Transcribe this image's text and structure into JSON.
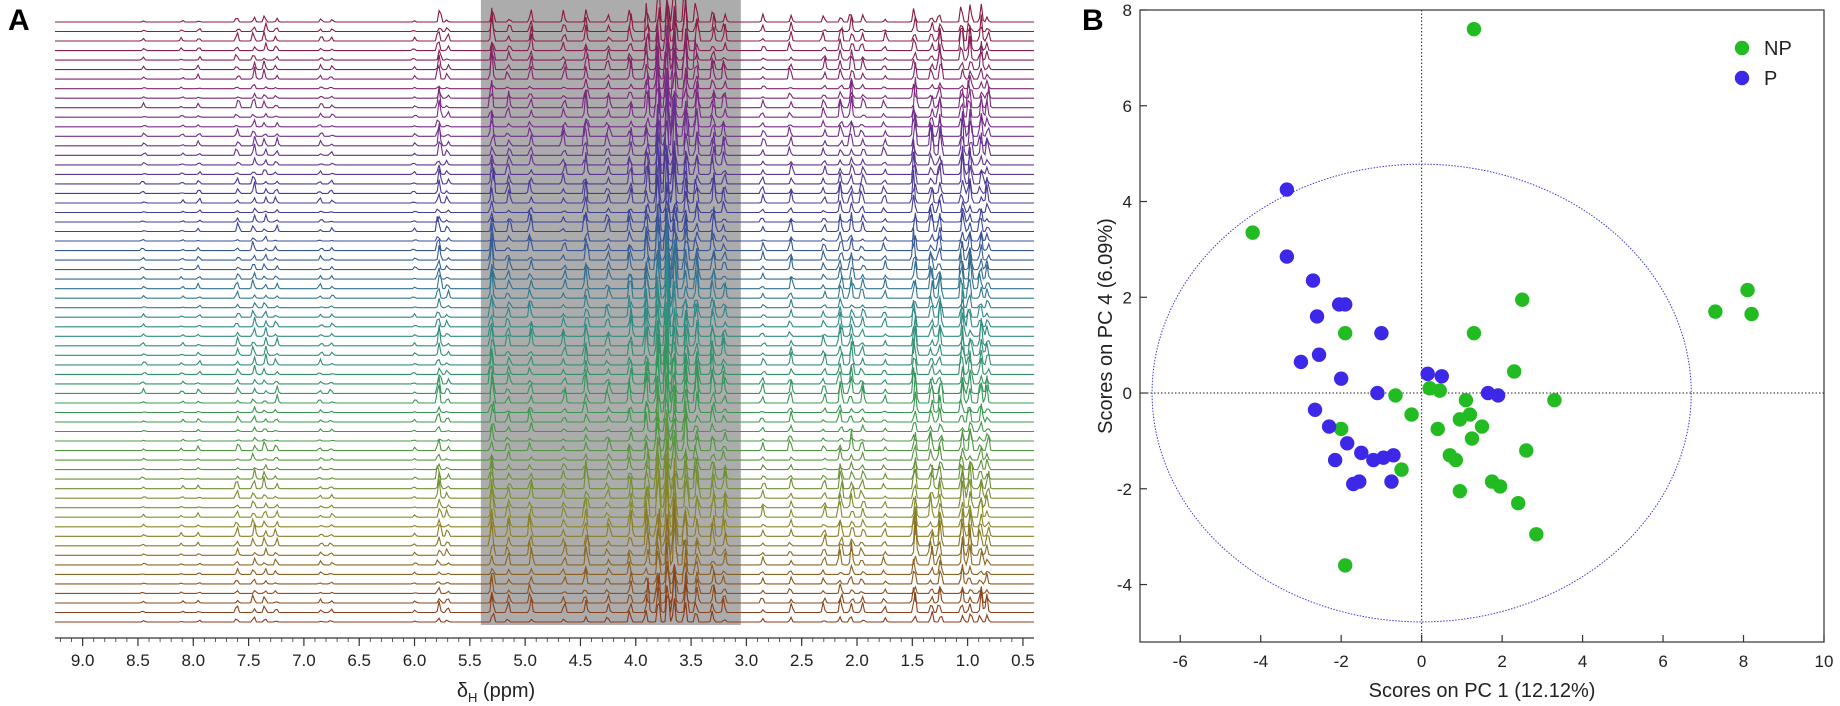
{
  "chart_data": [
    {
      "panel": "A",
      "type": "line",
      "title": "",
      "xlabel": "ppm",
      "xlabel_symbol": "δ",
      "xlabel_subscript": "H",
      "xlim": [
        9.25,
        0.4
      ],
      "x_ticks": [
        9.0,
        8.5,
        8.0,
        7.5,
        7.0,
        6.5,
        6.0,
        5.5,
        5.0,
        4.5,
        4.0,
        3.5,
        3.0,
        2.5,
        2.0,
        1.5,
        1.0,
        0.5
      ],
      "x_tick_labels": [
        "9.0",
        "8.5",
        "8.0",
        "7.5",
        "7.0",
        "6.5",
        "6.0",
        "5.5",
        "5.0",
        "4.5",
        "4.0",
        "3.5",
        "3.0",
        "2.5",
        "2.0",
        "1.5",
        "1.0",
        "0.5"
      ],
      "n_spectra": 64,
      "excluded_region_ppm": [
        5.4,
        3.05
      ],
      "excluded_region_color": "#9e9e9e",
      "color_gradient": [
        "#8b1a3a",
        "#7a2a8a",
        "#3a3f98",
        "#2e8a8a",
        "#3a9a4a",
        "#8a8a2a",
        "#8b3a1a"
      ],
      "peaks": [
        {
          "ppm": 8.45,
          "h": 0.25
        },
        {
          "ppm": 8.1,
          "h": 0.2
        },
        {
          "ppm": 7.95,
          "h": 0.3
        },
        {
          "ppm": 7.6,
          "h": 0.6
        },
        {
          "ppm": 7.45,
          "h": 0.8
        },
        {
          "ppm": 7.35,
          "h": 0.7
        },
        {
          "ppm": 7.25,
          "h": 0.45
        },
        {
          "ppm": 6.85,
          "h": 0.35
        },
        {
          "ppm": 6.75,
          "h": 0.3
        },
        {
          "ppm": 6.0,
          "h": 0.25
        },
        {
          "ppm": 5.78,
          "h": 1.2
        },
        {
          "ppm": 5.7,
          "h": 0.5
        },
        {
          "ppm": 2.85,
          "h": 0.6
        },
        {
          "ppm": 2.6,
          "h": 0.9
        },
        {
          "ppm": 2.3,
          "h": 0.7
        },
        {
          "ppm": 2.15,
          "h": 1.3
        },
        {
          "ppm": 2.05,
          "h": 1.5
        },
        {
          "ppm": 1.95,
          "h": 0.9
        },
        {
          "ppm": 1.75,
          "h": 0.6
        },
        {
          "ppm": 1.48,
          "h": 2.2
        },
        {
          "ppm": 1.33,
          "h": 1.6
        },
        {
          "ppm": 1.25,
          "h": 1.8
        },
        {
          "ppm": 1.05,
          "h": 2.4
        },
        {
          "ppm": 0.98,
          "h": 2.0
        },
        {
          "ppm": 0.88,
          "h": 1.6
        },
        {
          "ppm": 0.82,
          "h": 1.2
        }
      ],
      "region_peaks": [
        {
          "ppm": 5.3,
          "h": 2.0
        },
        {
          "ppm": 5.15,
          "h": 1.0
        },
        {
          "ppm": 4.95,
          "h": 1.3
        },
        {
          "ppm": 4.65,
          "h": 0.9
        },
        {
          "ppm": 4.45,
          "h": 1.8
        },
        {
          "ppm": 4.25,
          "h": 1.0
        },
        {
          "ppm": 4.05,
          "h": 1.6
        },
        {
          "ppm": 3.9,
          "h": 2.5
        },
        {
          "ppm": 3.8,
          "h": 4.0
        },
        {
          "ppm": 3.72,
          "h": 5.0
        },
        {
          "ppm": 3.65,
          "h": 4.2
        },
        {
          "ppm": 3.55,
          "h": 3.0
        },
        {
          "ppm": 3.45,
          "h": 2.2
        },
        {
          "ppm": 3.3,
          "h": 1.6
        },
        {
          "ppm": 3.2,
          "h": 1.2
        }
      ]
    },
    {
      "panel": "B",
      "type": "scatter",
      "title": "",
      "xlabel": "Scores on PC 1 (12.12%)",
      "ylabel": "Scores on PC 4 (6.09%)",
      "xlim": [
        -7,
        10
      ],
      "ylim": [
        -5.2,
        8
      ],
      "x_ticks": [
        -6,
        -4,
        -2,
        0,
        2,
        4,
        6,
        8,
        10
      ],
      "x_tick_labels": [
        "-6",
        "-4",
        "-2",
        "0",
        "2",
        "4",
        "6",
        "8",
        "10"
      ],
      "y_ticks": [
        -4,
        -2,
        0,
        2,
        4,
        6,
        8
      ],
      "y_tick_labels": [
        "-4",
        "-2",
        "0",
        "2",
        "4",
        "6",
        "8"
      ],
      "legend_position": "top-right",
      "ellipse": {
        "cx": 0,
        "cy": 0,
        "rx": 6.7,
        "ry": 4.78,
        "color": "#3a3ae0"
      },
      "reference_lines": {
        "x": 0,
        "y": 0
      },
      "series": [
        {
          "name": "NP",
          "color": "#22bb22",
          "points": [
            [
              1.3,
              7.6
            ],
            [
              -4.2,
              3.35
            ],
            [
              2.5,
              1.95
            ],
            [
              1.3,
              1.25
            ],
            [
              -1.9,
              1.25
            ],
            [
              8.1,
              2.15
            ],
            [
              8.2,
              1.65
            ],
            [
              7.3,
              1.7
            ],
            [
              2.3,
              0.45
            ],
            [
              0.2,
              0.1
            ],
            [
              0.45,
              0.05
            ],
            [
              3.3,
              -0.15
            ],
            [
              1.1,
              -0.15
            ],
            [
              -0.65,
              -0.05
            ],
            [
              -0.25,
              -0.45
            ],
            [
              1.2,
              -0.45
            ],
            [
              0.95,
              -0.55
            ],
            [
              1.5,
              -0.7
            ],
            [
              0.4,
              -0.75
            ],
            [
              -2.0,
              -0.75
            ],
            [
              1.25,
              -0.95
            ],
            [
              0.7,
              -1.3
            ],
            [
              0.85,
              -1.4
            ],
            [
              2.6,
              -1.2
            ],
            [
              -0.5,
              -1.6
            ],
            [
              1.75,
              -1.85
            ],
            [
              1.95,
              -1.95
            ],
            [
              0.95,
              -2.05
            ],
            [
              2.4,
              -2.3
            ],
            [
              2.85,
              -2.95
            ],
            [
              -1.9,
              -3.6
            ]
          ]
        },
        {
          "name": "P",
          "color": "#3c28e6",
          "points": [
            [
              -3.35,
              4.25
            ],
            [
              -3.35,
              2.85
            ],
            [
              -2.7,
              2.35
            ],
            [
              -2.05,
              1.85
            ],
            [
              -1.9,
              1.85
            ],
            [
              -2.6,
              1.6
            ],
            [
              -1.0,
              1.25
            ],
            [
              -2.55,
              0.8
            ],
            [
              -3.0,
              0.65
            ],
            [
              -2.0,
              0.3
            ],
            [
              0.15,
              0.4
            ],
            [
              0.5,
              0.35
            ],
            [
              -1.1,
              0.0
            ],
            [
              1.65,
              0.0
            ],
            [
              1.9,
              -0.05
            ],
            [
              -2.65,
              -0.35
            ],
            [
              -2.3,
              -0.7
            ],
            [
              -1.85,
              -1.05
            ],
            [
              -1.5,
              -1.25
            ],
            [
              -1.2,
              -1.4
            ],
            [
              -0.95,
              -1.35
            ],
            [
              -0.7,
              -1.3
            ],
            [
              -2.15,
              -1.4
            ],
            [
              -1.7,
              -1.9
            ],
            [
              -1.55,
              -1.85
            ],
            [
              -0.75,
              -1.85
            ]
          ]
        }
      ]
    }
  ]
}
